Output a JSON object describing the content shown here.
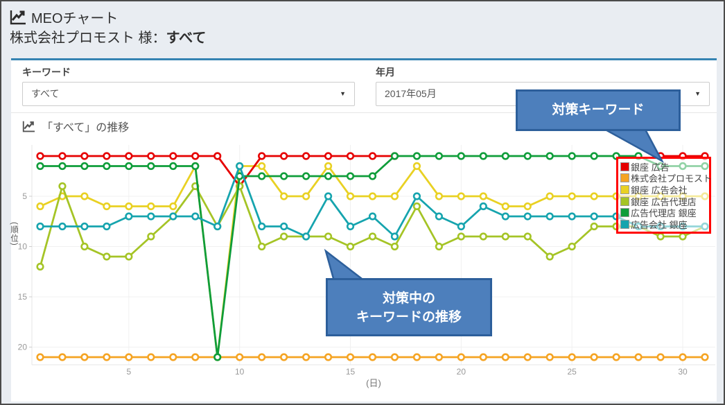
{
  "header": {
    "title": "MEOチャート",
    "client_prefix": "株式会社プロモスト 様：",
    "client_selection": "すべて"
  },
  "filters": {
    "keyword": {
      "label": "キーワード",
      "value": "すべて"
    },
    "month": {
      "label": "年月",
      "value": "2017年05月"
    }
  },
  "section": {
    "title": "「すべて」の推移"
  },
  "callouts": {
    "legend_note": {
      "text": "対策キーワード"
    },
    "trend_note": {
      "line1": "対策中の",
      "line2": "キーワードの推移"
    }
  },
  "colors": {
    "panel_top_border": "#3583b2",
    "callout_fill": "#4d7fbc",
    "callout_border": "#2d5f9b",
    "legend_highlight_border": "#ff0000",
    "grid": "#f0f0f0",
    "axis": "#e5e5e5",
    "tick_label": "#999999"
  },
  "chart_data": {
    "type": "line",
    "title": "「すべて」の推移",
    "xlabel": "(日)",
    "ylabel": "(順位)",
    "x": [
      1,
      2,
      3,
      4,
      5,
      6,
      7,
      8,
      9,
      10,
      11,
      12,
      13,
      14,
      15,
      16,
      17,
      18,
      19,
      20,
      21,
      22,
      23,
      24,
      25,
      26,
      27,
      28,
      29,
      30,
      31
    ],
    "x_ticks": [
      5,
      10,
      15,
      20,
      25,
      30
    ],
    "y_ticks": [
      5,
      10,
      15,
      20
    ],
    "y_axis_inverted": true,
    "ylim": [
      1,
      22
    ],
    "grid": true,
    "legend_position": "right-overlay",
    "draw_order": [
      1,
      2,
      0,
      3,
      4,
      5
    ],
    "series": [
      {
        "name": "銀座 広告",
        "color": "#e60000",
        "values": [
          1,
          1,
          1,
          1,
          1,
          1,
          1,
          1,
          1,
          4,
          1,
          1,
          1,
          1,
          1,
          1,
          1,
          null,
          null,
          null,
          null,
          null,
          null,
          null,
          null,
          null,
          null,
          null,
          1,
          1,
          1
        ]
      },
      {
        "name": "株式会社プロモスト",
        "color": "#f5a423",
        "values": [
          21,
          21,
          21,
          21,
          21,
          21,
          21,
          21,
          21,
          21,
          21,
          21,
          21,
          21,
          21,
          21,
          21,
          21,
          21,
          21,
          21,
          21,
          21,
          21,
          21,
          21,
          21,
          21,
          21,
          21,
          21
        ]
      },
      {
        "name": "銀座 広告会社",
        "color": "#e9d123",
        "values": [
          6,
          5,
          5,
          6,
          6,
          6,
          6,
          2,
          21,
          2,
          2,
          5,
          5,
          2,
          5,
          5,
          5,
          2,
          5,
          5,
          5,
          6,
          6,
          5,
          5,
          5,
          5,
          5,
          5,
          5,
          5
        ]
      },
      {
        "name": "銀座 広告代理店",
        "color": "#a5c426",
        "values": [
          12,
          4,
          10,
          11,
          11,
          9,
          7,
          4,
          8,
          4,
          10,
          9,
          9,
          9,
          10,
          9,
          10,
          6,
          10,
          9,
          9,
          9,
          9,
          11,
          10,
          8,
          8,
          8,
          9,
          9,
          8
        ]
      },
      {
        "name": "広告代理店 銀座",
        "color": "#0f9d3a",
        "values": [
          2,
          2,
          2,
          2,
          2,
          2,
          2,
          2,
          21,
          3,
          3,
          3,
          3,
          3,
          3,
          3,
          1,
          1,
          1,
          1,
          1,
          1,
          1,
          1,
          1,
          1,
          1,
          1,
          2,
          2,
          2
        ]
      },
      {
        "name": "広告会社 銀座",
        "color": "#16a4ae",
        "values": [
          8,
          8,
          8,
          8,
          7,
          7,
          7,
          7,
          8,
          2,
          8,
          8,
          9,
          5,
          8,
          7,
          9,
          5,
          7,
          8,
          6,
          7,
          7,
          7,
          7,
          7,
          7,
          8,
          8,
          8,
          8
        ]
      }
    ]
  }
}
